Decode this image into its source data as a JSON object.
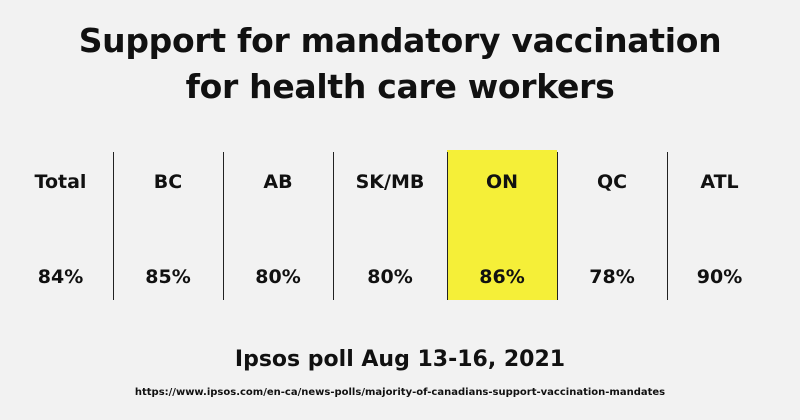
{
  "title": {
    "line1": "Support for mandatory vaccination",
    "line2": "for health care workers"
  },
  "chart_data": {
    "type": "table",
    "columns": [
      {
        "region": "Total",
        "value": 84,
        "label": "84%",
        "highlighted": false
      },
      {
        "region": "BC",
        "value": 85,
        "label": "85%",
        "highlighted": false
      },
      {
        "region": "AB",
        "value": 80,
        "label": "80%",
        "highlighted": false
      },
      {
        "region": "SK/MB",
        "value": 80,
        "label": "80%",
        "highlighted": false
      },
      {
        "region": "ON",
        "value": 86,
        "label": "86%",
        "highlighted": true
      },
      {
        "region": "QC",
        "value": 78,
        "label": "78%",
        "highlighted": false
      },
      {
        "region": "ATL",
        "value": 90,
        "label": "90%",
        "highlighted": false
      }
    ],
    "highlight_color": "#f5ef38"
  },
  "footer": {
    "poll": "Ipsos poll Aug 13-16, 2021",
    "source_url": "https://www.ipsos.com/en-ca/news-polls/majority-of-canadians-support-vaccination-mandates"
  }
}
